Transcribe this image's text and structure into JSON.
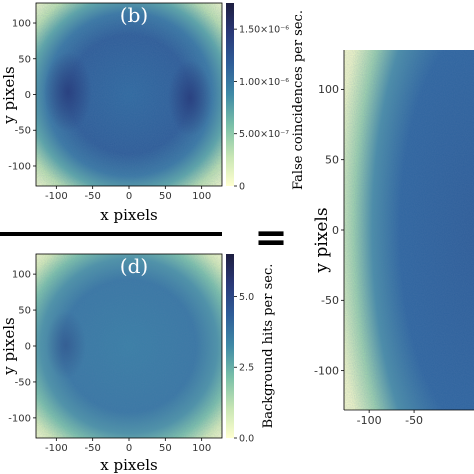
{
  "chart_data": [
    {
      "type": "heatmap",
      "panel_label": "(b)",
      "xlabel": "x pixels",
      "ylabel": "y pixels",
      "xlim": [
        -128,
        128
      ],
      "ylim": [
        -128,
        128
      ],
      "x_ticks": [
        "-100",
        "-50",
        "0",
        "50",
        "100"
      ],
      "x_tick_values": [
        -100,
        -50,
        0,
        50,
        100
      ],
      "y_ticks": [
        "100",
        "50",
        "0",
        "-50",
        "-100"
      ],
      "y_tick_values": [
        100,
        50,
        0,
        -50,
        -100
      ],
      "colorbar_label": "False coincidences per sec.",
      "colorbar_ticks": [
        "1.50×10⁻⁶",
        "1.00×10⁻⁶",
        "5.00×10⁻⁷",
        "0"
      ],
      "colorbar_tick_values": [
        1.5e-06,
        1e-06,
        5e-07,
        0
      ],
      "colorbar_range": [
        0,
        1.75e-06
      ],
      "colormap": [
        "#ffffd0",
        "#c8e6b4",
        "#7ac0a8",
        "#3f8aa6",
        "#2e5d98",
        "#2a3877",
        "#1d1e40"
      ]
    },
    {
      "type": "heatmap",
      "panel_label": "(d)",
      "xlabel": "x pixels",
      "ylabel": "y pixels",
      "xlim": [
        -128,
        128
      ],
      "ylim": [
        -128,
        128
      ],
      "x_ticks": [
        "-100",
        "-50",
        "0",
        "50",
        "100"
      ],
      "x_tick_values": [
        -100,
        -50,
        0,
        50,
        100
      ],
      "y_ticks": [
        "100",
        "50",
        "0",
        "-50",
        "-100"
      ],
      "y_tick_values": [
        100,
        50,
        0,
        -50,
        -100
      ],
      "colorbar_label": "Background hits per sec.",
      "colorbar_ticks": [
        "5.0",
        "2.5",
        "0.0"
      ],
      "colorbar_tick_values": [
        5.0,
        2.5,
        0.0
      ],
      "colorbar_range": [
        0,
        6.5
      ],
      "colormap": [
        "#ffffd0",
        "#c8e6b4",
        "#7ac0a8",
        "#3f8aa6",
        "#2e5d98",
        "#2a3877",
        "#1d1e40"
      ]
    },
    {
      "type": "heatmap",
      "panel_label": "",
      "xlabel": "",
      "ylabel": "y pixels",
      "xlim": [
        -128,
        128
      ],
      "ylim": [
        -128,
        128
      ],
      "x_ticks": [
        "-100",
        "-50"
      ],
      "x_tick_values": [
        -100,
        -50
      ],
      "y_ticks": [
        "100",
        "50",
        "0",
        "-50",
        "-100"
      ],
      "y_tick_values": [
        100,
        50,
        0,
        -50,
        -100
      ],
      "colormap": [
        "#ffffd0",
        "#c8e6b4",
        "#7ac0a8",
        "#3f8aa6",
        "#2e5d98",
        "#2a3877",
        "#1d1e40"
      ]
    }
  ],
  "operators": {
    "fraction_bar": "",
    "equals": "="
  },
  "colors": {
    "axis": "#000000",
    "tick_text": "#333333"
  }
}
